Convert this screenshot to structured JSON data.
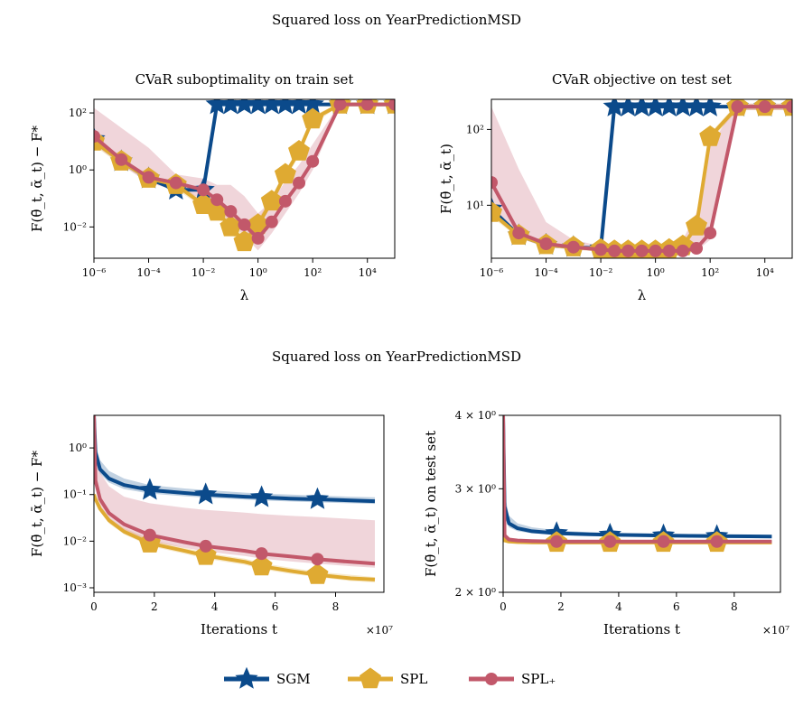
{
  "figure": {
    "top_title": "Squared loss on YearPredictionMSD",
    "mid_title": "Squared loss on YearPredictionMSD"
  },
  "colors": {
    "SGM": "#0b4a8b",
    "SPL": "#dfaa32",
    "SPL_plus": "#c2586a"
  },
  "legend": {
    "placement": "bottom-center",
    "items": [
      {
        "key": "SGM",
        "label": "SGM",
        "marker": "star-icon"
      },
      {
        "key": "SPL",
        "label": "SPL",
        "marker": "pentagon-icon"
      },
      {
        "key": "SPL_plus",
        "label": "SPL₊",
        "marker": "circle-icon"
      }
    ]
  },
  "chart_data": [
    {
      "type": "line",
      "title": "CVaR suboptimality on train set",
      "xlabel": "λ",
      "ylabel": "F(θ̄_t, ᾱ_t) − F*",
      "xscale": "log",
      "yscale": "log",
      "xlim": [
        1e-06,
        100000.0
      ],
      "ylim": [
        0.0008,
        300
      ],
      "xticks": [
        1e-06,
        0.0001,
        0.01,
        1.0,
        100.0,
        10000.0
      ],
      "xticklabels": [
        "10⁻⁶",
        "10⁻⁴",
        "10⁻²",
        "10⁰",
        "10²",
        "10⁴"
      ],
      "yticks": [
        0.01,
        1.0,
        100.0
      ],
      "yticklabels": [
        "10⁻²",
        "10⁰",
        "10²"
      ],
      "grid": false,
      "series": [
        {
          "name": "SGM",
          "key": "SGM",
          "marker": "star",
          "x": [
            1e-06,
            1e-05,
            0.0001,
            0.001,
            0.01,
            0.0316,
            0.1,
            0.316,
            1,
            3.16,
            10,
            31.6,
            100,
            1000.0,
            10000.0,
            100000.0
          ],
          "y": [
            12,
            2,
            0.5,
            0.2,
            0.2,
            200,
            200,
            200,
            200,
            200,
            200,
            200,
            200,
            200,
            200,
            200
          ],
          "band_lo": null,
          "band_hi": null
        },
        {
          "name": "SPL",
          "key": "SPL",
          "marker": "pentagon",
          "x": [
            1e-06,
            1e-05,
            0.0001,
            0.001,
            0.01,
            0.0316,
            0.1,
            0.316,
            1,
            3.16,
            10,
            31.6,
            100,
            1000.0,
            10000.0,
            100000.0
          ],
          "y": [
            10,
            2.0,
            0.5,
            0.3,
            0.06,
            0.035,
            0.01,
            0.003,
            0.012,
            0.08,
            0.7,
            4.5,
            60,
            200,
            200,
            200
          ],
          "band_lo": [
            7,
            1.5,
            0.4,
            0.22,
            0.045,
            0.025,
            0.006,
            0.002,
            0.008,
            0.06,
            0.5,
            3,
            40,
            180,
            180,
            180
          ],
          "band_hi": [
            13,
            2.6,
            0.6,
            0.38,
            0.08,
            0.05,
            0.015,
            0.005,
            0.018,
            0.12,
            1.0,
            6,
            80,
            220,
            220,
            220
          ]
        },
        {
          "name": "SPL₊",
          "key": "SPL_plus",
          "marker": "circle",
          "x": [
            1e-06,
            1e-05,
            0.0001,
            0.001,
            0.01,
            0.0316,
            0.1,
            0.316,
            1,
            3.16,
            10,
            31.6,
            100,
            1000.0,
            10000.0,
            100000.0
          ],
          "y": [
            15,
            2.3,
            0.55,
            0.35,
            0.2,
            0.09,
            0.035,
            0.012,
            0.004,
            0.015,
            0.08,
            0.35,
            2,
            200,
            200,
            200
          ],
          "band_lo": [
            8,
            1.5,
            0.35,
            0.2,
            0.1,
            0.04,
            0.015,
            0.005,
            0.0015,
            0.006,
            0.03,
            0.15,
            1,
            180,
            180,
            180
          ],
          "band_hi": [
            150,
            30,
            6,
            0.7,
            0.5,
            0.3,
            0.3,
            0.12,
            0.03,
            0.08,
            0.4,
            1.5,
            8,
            220,
            220,
            220
          ]
        }
      ]
    },
    {
      "type": "line",
      "title": "CVaR objective on test set",
      "xlabel": "λ",
      "ylabel": "F(θ̄_t, ᾱ_t)",
      "xscale": "log",
      "yscale": "log",
      "xlim": [
        1e-06,
        100000.0
      ],
      "ylim": [
        2.0,
        250
      ],
      "xticks": [
        1e-06,
        0.0001,
        0.01,
        1.0,
        100.0,
        10000.0
      ],
      "xticklabels": [
        "10⁻⁶",
        "10⁻⁴",
        "10⁻²",
        "10⁰",
        "10²",
        "10⁴"
      ],
      "yticks": [
        10,
        100
      ],
      "yticklabels": [
        "10¹",
        "10²"
      ],
      "grid": false,
      "series": [
        {
          "name": "SGM",
          "key": "SGM",
          "marker": "star",
          "x": [
            1e-06,
            1e-05,
            0.0001,
            0.001,
            0.01,
            0.0316,
            0.1,
            0.316,
            1,
            3.16,
            10,
            31.6,
            100,
            1000.0,
            10000.0,
            100000.0
          ],
          "y": [
            9,
            4,
            3,
            2.8,
            2.7,
            200,
            200,
            200,
            200,
            200,
            200,
            200,
            200,
            200,
            200,
            200
          ],
          "band_lo": null,
          "band_hi": null
        },
        {
          "name": "SPL",
          "key": "SPL",
          "marker": "pentagon",
          "x": [
            1e-06,
            1e-05,
            0.0001,
            0.001,
            0.01,
            0.0316,
            0.1,
            0.316,
            1,
            3.16,
            10,
            31.6,
            100,
            1000.0,
            10000.0,
            100000.0
          ],
          "y": [
            8,
            4.0,
            3.0,
            2.8,
            2.6,
            2.5,
            2.5,
            2.5,
            2.5,
            2.6,
            2.9,
            5.3,
            80,
            200,
            200,
            200
          ],
          "band_lo": [
            7,
            3.7,
            2.8,
            2.6,
            2.45,
            2.4,
            2.4,
            2.4,
            2.4,
            2.45,
            2.7,
            4.8,
            70,
            180,
            180,
            180
          ],
          "band_hi": [
            9,
            4.3,
            3.2,
            3.0,
            2.75,
            2.65,
            2.65,
            2.65,
            2.65,
            2.75,
            3.1,
            5.8,
            90,
            220,
            220,
            220
          ]
        },
        {
          "name": "SPL₊",
          "key": "SPL_plus",
          "marker": "circle",
          "x": [
            1e-06,
            1e-05,
            0.0001,
            0.001,
            0.01,
            0.0316,
            0.1,
            0.316,
            1,
            3.16,
            10,
            31.6,
            100,
            1000.0,
            10000.0,
            100000.0
          ],
          "y": [
            20,
            4.3,
            3.1,
            2.8,
            2.6,
            2.5,
            2.5,
            2.5,
            2.5,
            2.5,
            2.5,
            2.7,
            4.3,
            200,
            200,
            200
          ],
          "band_lo": [
            10,
            3.7,
            2.8,
            2.6,
            2.45,
            2.4,
            2.4,
            2.4,
            2.4,
            2.4,
            2.4,
            2.5,
            3.5,
            180,
            180,
            180
          ],
          "band_hi": [
            200,
            30,
            6,
            3.5,
            2.9,
            2.8,
            2.8,
            2.8,
            2.8,
            3.0,
            3.5,
            8,
            60,
            220,
            220,
            220
          ]
        }
      ]
    },
    {
      "type": "line",
      "title": "",
      "xlabel": "Iterations t",
      "xfactor": "×10⁷",
      "ylabel": "F(θ̄_t, ᾱ_t) − F*",
      "xscale": "linear",
      "yscale": "log",
      "xlim": [
        0,
        9.6
      ],
      "ylim": [
        0.0008,
        5
      ],
      "xticks": [
        0,
        2,
        4,
        6,
        8
      ],
      "xticklabels": [
        "0",
        "2",
        "4",
        "6",
        "8"
      ],
      "yticks": [
        0.001,
        0.01,
        0.1,
        1
      ],
      "yticklabels": [
        "10⁻³",
        "10⁻²",
        "10⁻¹",
        "10⁰"
      ],
      "grid": false,
      "series": [
        {
          "name": "SGM",
          "key": "SGM",
          "marker": "star",
          "x": [
            0,
            0.05,
            0.2,
            0.5,
            1,
            1.85,
            3,
            3.7,
            5,
            5.55,
            6.5,
            7.4,
            8.5,
            9.3
          ],
          "y": [
            5,
            0.8,
            0.35,
            0.22,
            0.16,
            0.125,
            0.108,
            0.1,
            0.09,
            0.087,
            0.082,
            0.079,
            0.075,
            0.072
          ],
          "markers_x": [
            1.85,
            3.7,
            5.55,
            7.4
          ],
          "band_lo": [
            5,
            0.6,
            0.28,
            0.18,
            0.13,
            0.105,
            0.092,
            0.086,
            0.078,
            0.075,
            0.071,
            0.068,
            0.065,
            0.063
          ],
          "band_hi": [
            5,
            1.2,
            0.55,
            0.32,
            0.22,
            0.16,
            0.135,
            0.125,
            0.11,
            0.105,
            0.1,
            0.095,
            0.09,
            0.087
          ]
        },
        {
          "name": "SPL",
          "key": "SPL",
          "marker": "pentagon",
          "x": [
            0,
            0.05,
            0.2,
            0.5,
            1,
            1.85,
            3,
            3.7,
            5,
            5.55,
            6.5,
            7.4,
            8.5,
            9.3
          ],
          "y": [
            0.1,
            0.08,
            0.05,
            0.028,
            0.016,
            0.009,
            0.0062,
            0.0049,
            0.0036,
            0.0029,
            0.0023,
            0.0019,
            0.0016,
            0.0015
          ],
          "markers_x": [
            1.85,
            3.7,
            5.55,
            7.4
          ],
          "band_lo": [
            0.09,
            0.07,
            0.044,
            0.024,
            0.014,
            0.0078,
            0.0054,
            0.0042,
            0.0031,
            0.0025,
            0.002,
            0.0017,
            0.0014,
            0.0013
          ],
          "band_hi": [
            0.12,
            0.09,
            0.057,
            0.032,
            0.019,
            0.011,
            0.0072,
            0.0057,
            0.0042,
            0.0034,
            0.0027,
            0.0022,
            0.0019,
            0.0017
          ]
        },
        {
          "name": "SPL₊",
          "key": "SPL_plus",
          "marker": "circle",
          "x": [
            0,
            0.05,
            0.2,
            0.5,
            1,
            1.85,
            3,
            3.7,
            5,
            5.55,
            6.5,
            7.4,
            8.5,
            9.3
          ],
          "y": [
            5,
            0.2,
            0.08,
            0.04,
            0.023,
            0.0135,
            0.0095,
            0.0078,
            0.0062,
            0.0054,
            0.0047,
            0.0041,
            0.0036,
            0.0033
          ],
          "markers_x": [
            1.85,
            3.7,
            5.55,
            7.4
          ],
          "band_lo": [
            5,
            0.15,
            0.06,
            0.03,
            0.017,
            0.01,
            0.0072,
            0.006,
            0.0048,
            0.0042,
            0.0037,
            0.0033,
            0.0029,
            0.0027
          ],
          "band_hi": [
            5,
            0.6,
            0.3,
            0.15,
            0.09,
            0.065,
            0.052,
            0.047,
            0.041,
            0.038,
            0.035,
            0.033,
            0.03,
            0.028
          ]
        }
      ]
    },
    {
      "type": "line",
      "title": "",
      "xlabel": "Iterations t",
      "xfactor": "×10⁷",
      "ylabel": "F(θ̄_t, ᾱ_t) on test set",
      "xscale": "linear",
      "yscale": "log",
      "xlim": [
        0,
        9.6
      ],
      "ylim": [
        2.0,
        4.0
      ],
      "xticks": [
        0,
        2,
        4,
        6,
        8
      ],
      "xticklabels": [
        "0",
        "2",
        "4",
        "6",
        "8"
      ],
      "yticks": [
        2,
        3,
        4
      ],
      "yticklabels": [
        "2 × 10⁰",
        "3 × 10⁰",
        "4 × 10⁰"
      ],
      "grid": false,
      "series": [
        {
          "name": "SGM",
          "key": "SGM",
          "marker": "star",
          "x": [
            0,
            0.05,
            0.2,
            0.5,
            1,
            1.85,
            3,
            3.7,
            5,
            5.55,
            6.5,
            7.4,
            8.5,
            9.3
          ],
          "y": [
            4.0,
            2.8,
            2.62,
            2.57,
            2.54,
            2.52,
            2.51,
            2.505,
            2.5,
            2.498,
            2.495,
            2.492,
            2.49,
            2.488
          ],
          "markers_x": [
            1.85,
            3.7,
            5.55,
            7.4
          ],
          "band_lo": [
            4.0,
            2.7,
            2.58,
            2.54,
            2.52,
            2.505,
            2.497,
            2.493,
            2.489,
            2.487,
            2.485,
            2.483,
            2.481,
            2.48
          ],
          "band_hi": [
            4.0,
            2.95,
            2.7,
            2.62,
            2.58,
            2.55,
            2.53,
            2.525,
            2.518,
            2.515,
            2.512,
            2.508,
            2.505,
            2.503
          ]
        },
        {
          "name": "SPL",
          "key": "SPL",
          "marker": "pentagon",
          "x": [
            0,
            0.05,
            0.2,
            0.5,
            1,
            1.85,
            3,
            3.7,
            5,
            5.55,
            6.5,
            7.4,
            8.5,
            9.3
          ],
          "y": [
            2.5,
            2.45,
            2.44,
            2.435,
            2.432,
            2.43,
            2.43,
            2.43,
            2.43,
            2.43,
            2.43,
            2.43,
            2.43,
            2.43
          ],
          "markers_x": [
            1.85,
            3.7,
            5.55,
            7.4
          ],
          "band_lo": null,
          "band_hi": null
        },
        {
          "name": "SPL₊",
          "key": "SPL_plus",
          "marker": "circle",
          "x": [
            0,
            0.05,
            0.2,
            0.5,
            1,
            1.85,
            3,
            3.7,
            5,
            5.55,
            6.5,
            7.4,
            8.5,
            9.3
          ],
          "y": [
            4.0,
            2.5,
            2.46,
            2.45,
            2.445,
            2.44,
            2.44,
            2.44,
            2.44,
            2.44,
            2.44,
            2.44,
            2.44,
            2.44
          ],
          "markers_x": [
            1.85,
            3.7,
            5.55,
            7.4
          ],
          "band_lo": null,
          "band_hi": null
        }
      ]
    }
  ]
}
